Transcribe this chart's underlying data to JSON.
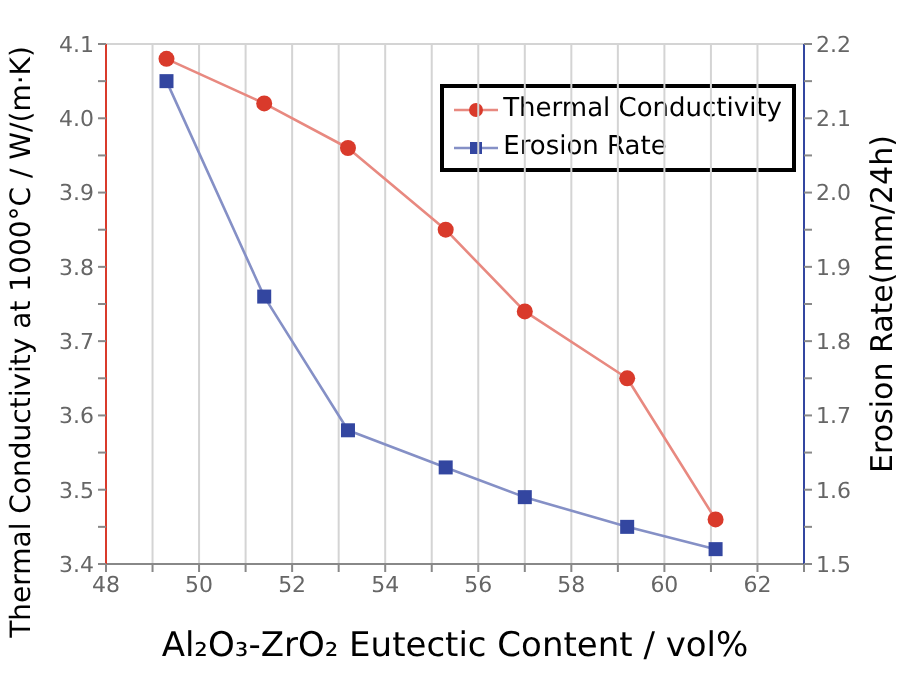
{
  "chart_data": {
    "type": "line",
    "xlabel": "Al₂O₃-ZrO₂ Eutectic Content / vol%",
    "ylabel": "Thermal Conductivity at 1000°C / W/(m·K)",
    "y2label": "Erosion Rate(mm/24h)",
    "x": [
      49.3,
      51.4,
      53.2,
      55.3,
      57.0,
      59.2,
      61.1
    ],
    "series": [
      {
        "name": "Thermal Conductivity",
        "color": "#d93a2b",
        "values": [
          4.08,
          4.02,
          3.96,
          3.85,
          3.74,
          3.65,
          3.46
        ],
        "marker": "circle"
      },
      {
        "name": "Erosion Rate",
        "color": "#3346a0",
        "values": [
          2.15,
          1.86,
          1.68,
          1.63,
          1.59,
          1.55,
          1.52
        ],
        "axis": "y2",
        "marker": "square"
      }
    ],
    "xlim": [
      48,
      63
    ],
    "xticks": [
      48,
      {
        "value": 49,
        "label": null
      },
      50,
      {
        "value": 51,
        "label": null
      },
      52,
      {
        "value": 53,
        "label": null
      },
      54,
      {
        "value": 55,
        "label": null
      },
      56,
      {
        "value": 57,
        "label": null
      },
      58,
      {
        "value": 59,
        "label": null
      },
      60,
      {
        "value": 61,
        "label": null
      },
      62,
      {
        "value": 63,
        "label": null
      }
    ],
    "ylim": [
      3.4,
      4.1
    ],
    "yticks": [
      3.4,
      {
        "value": 3.45,
        "label": null
      },
      3.5,
      {
        "value": 3.55,
        "label": null
      },
      3.6,
      {
        "value": 3.65,
        "label": null
      },
      3.7,
      {
        "value": 3.75,
        "label": null
      },
      3.8,
      {
        "value": 3.85,
        "label": null
      },
      3.9,
      {
        "value": 3.95,
        "label": null
      },
      {
        "value": 4.0,
        "label": "4.0"
      },
      {
        "value": 4.05,
        "label": null
      },
      4.1
    ],
    "y2lim": [
      1.5,
      2.2
    ],
    "y2ticks": [
      1.5,
      {
        "value": 1.55,
        "label": null
      },
      1.6,
      {
        "value": 1.65,
        "label": null
      },
      1.7,
      {
        "value": 1.75,
        "label": null
      },
      1.8,
      {
        "value": 1.85,
        "label": null
      },
      1.9,
      {
        "value": 1.95,
        "label": null
      },
      {
        "value": 2.0,
        "label": "2.0"
      },
      {
        "value": 2.05,
        "label": null
      },
      2.1,
      {
        "value": 2.15,
        "label": null
      },
      2.2
    ],
    "grid": true,
    "legend": "top right"
  }
}
